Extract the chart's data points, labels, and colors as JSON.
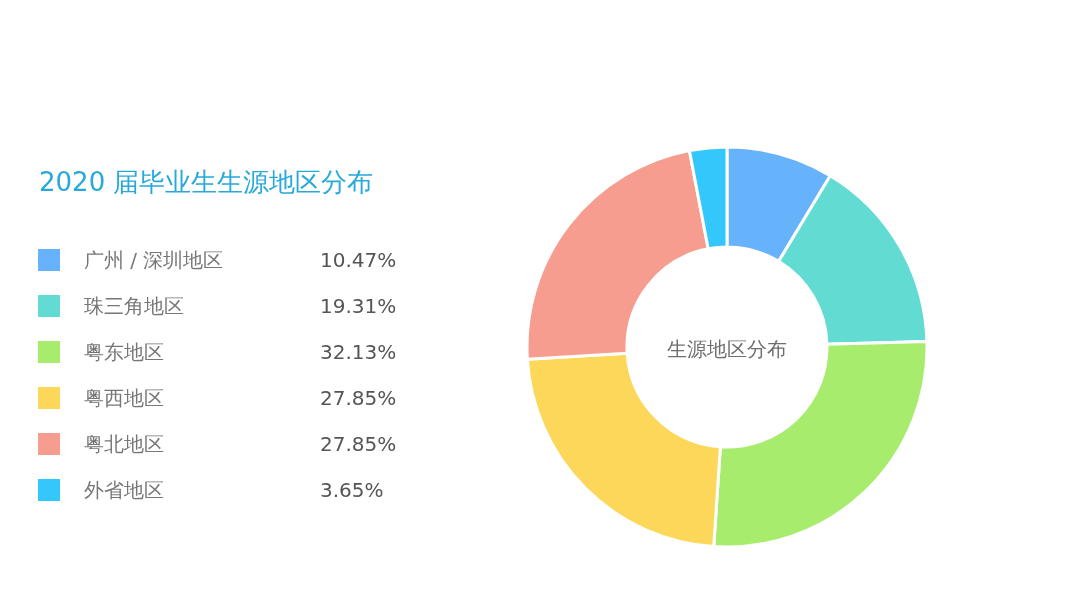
{
  "chart_data": {
    "type": "donut",
    "title": "2020 届毕业生生源地区分布",
    "annotations": [
      "生源地区分布"
    ],
    "categories": [
      "广州 / 深圳地区",
      "珠三角地区",
      "粤东地区",
      "粤西地区",
      "粤北地区",
      "外省地区"
    ],
    "values": [
      10.47,
      19.31,
      32.13,
      27.85,
      27.85,
      3.65
    ],
    "value_labels": [
      "10.47%",
      "19.31%",
      "32.13%",
      "27.85%",
      "27.85%",
      "3.65%"
    ],
    "colors": [
      "#66b3fb",
      "#62dbd3",
      "#a8ec6e",
      "#fdd75a",
      "#f69d90",
      "#33c7fb"
    ],
    "legend": "left"
  }
}
